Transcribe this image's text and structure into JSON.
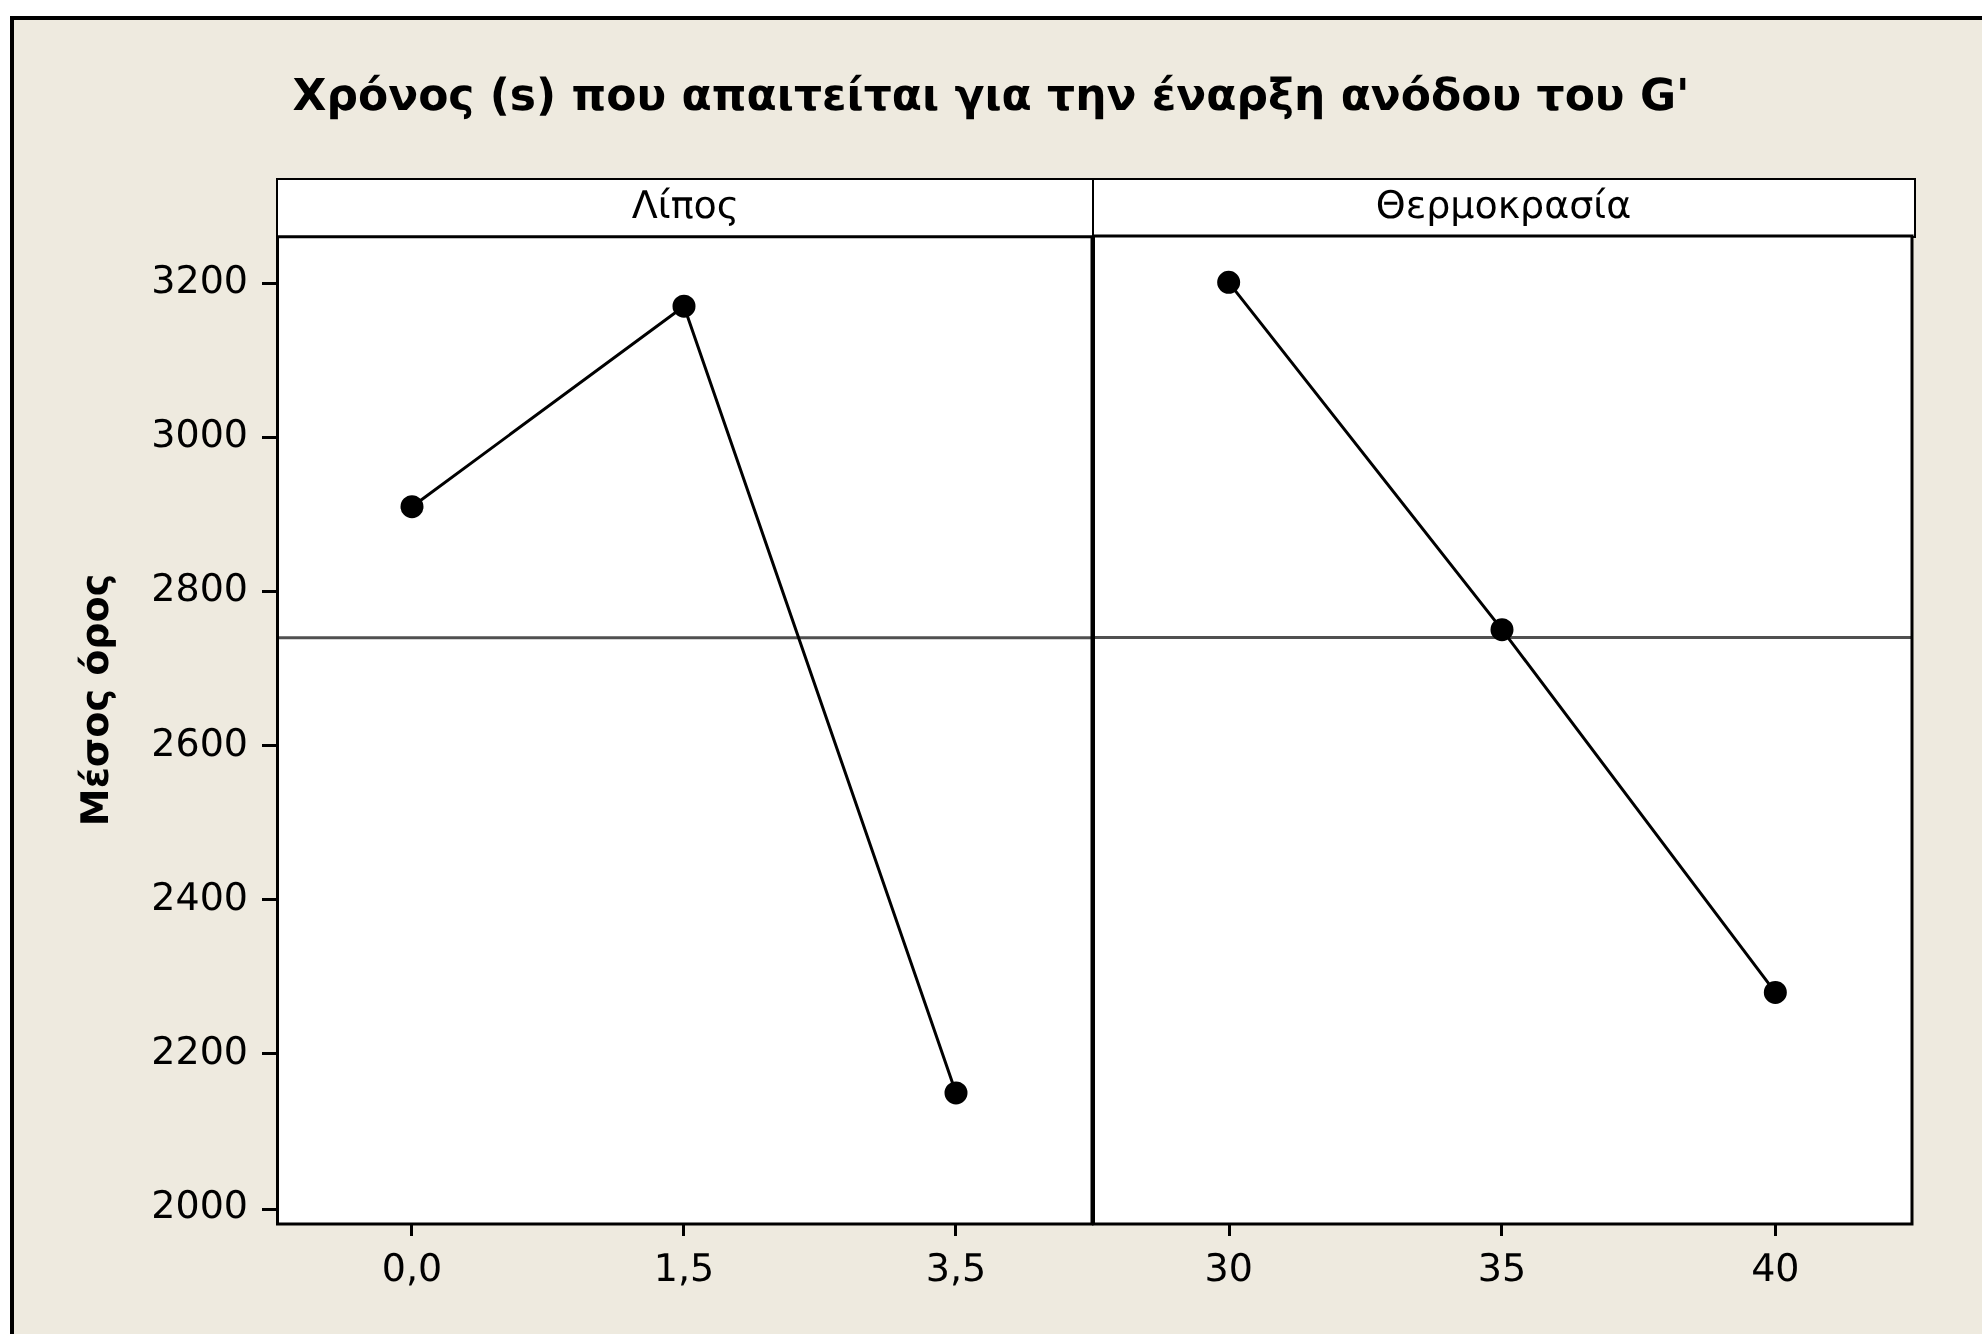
{
  "chart_data": [
    {
      "type": "line",
      "title": "Χρόνος (s) που απαιτείται για την έναρξη ανόδου του G'",
      "ylabel": "Μέσος όρος",
      "xlabel": "Λίπος",
      "categories": [
        "0,0",
        "1,5",
        "3,5"
      ],
      "values": [
        2910,
        3170,
        2150
      ],
      "color": "#000000",
      "marker": "circle",
      "ylim": [
        1980,
        3260
      ],
      "yticks": [
        2000,
        2200,
        2400,
        2600,
        2800,
        3000,
        3200
      ],
      "grid": false,
      "legend": false,
      "ref_lines": [
        {
          "axis": "y",
          "value": 2740,
          "color": "#505050"
        }
      ]
    },
    {
      "type": "line",
      "xlabel": "Θερμοκρασία",
      "categories": [
        "30",
        "35",
        "40"
      ],
      "values": [
        3200,
        2750,
        2280
      ],
      "color": "#000000",
      "marker": "circle",
      "ylim": [
        1980,
        3260
      ],
      "tick_labels": "x",
      "grid": false,
      "legend": false,
      "ref_lines": [
        {
          "axis": "y",
          "value": 2740,
          "color": "#505050"
        }
      ]
    }
  ]
}
